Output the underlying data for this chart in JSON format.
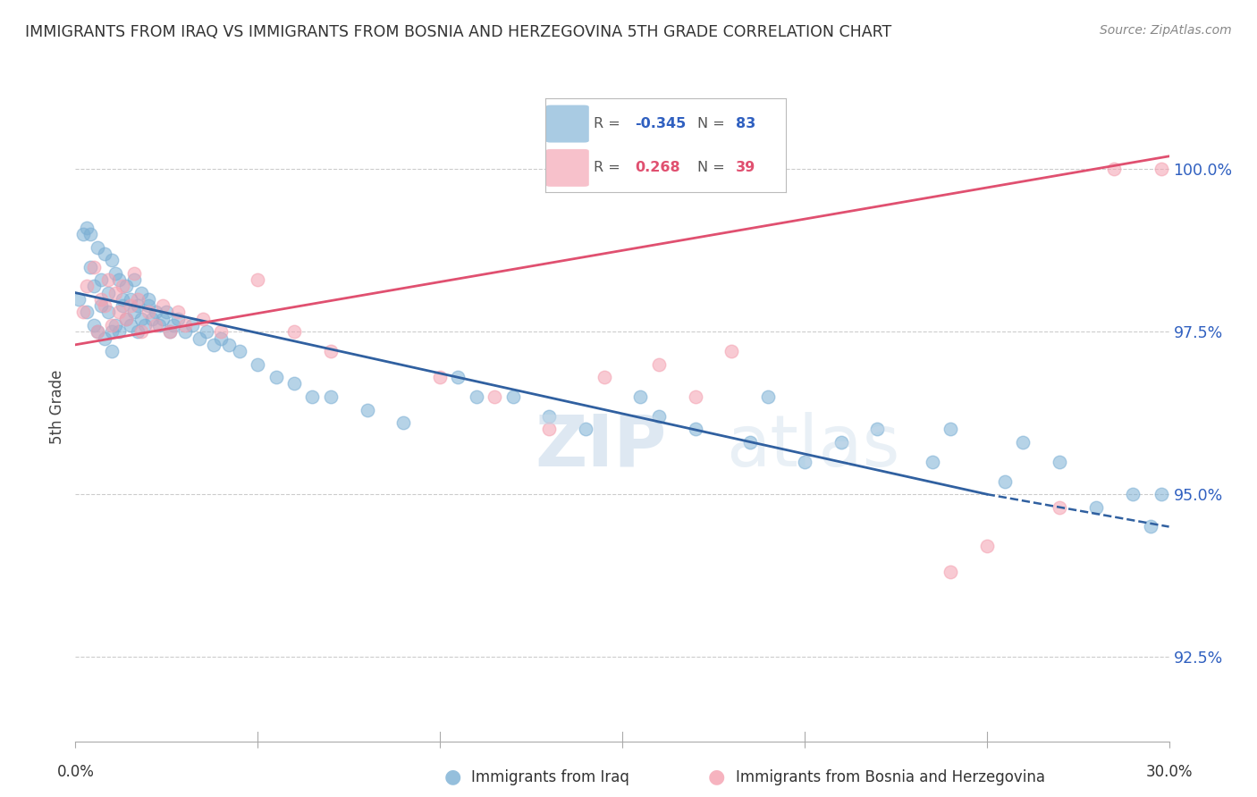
{
  "title": "IMMIGRANTS FROM IRAQ VS IMMIGRANTS FROM BOSNIA AND HERZEGOVINA 5TH GRADE CORRELATION CHART",
  "source": "Source: ZipAtlas.com",
  "ylabel": "5th Grade",
  "y_ticks": [
    92.5,
    95.0,
    97.5,
    100.0
  ],
  "y_tick_labels": [
    "92.5%",
    "95.0%",
    "97.5%",
    "100.0%"
  ],
  "xlim": [
    0.0,
    30.0
  ],
  "ylim": [
    91.2,
    101.5
  ],
  "legend_r_iraq": "-0.345",
  "legend_n_iraq": "83",
  "legend_r_bosnia": "0.268",
  "legend_n_bosnia": "39",
  "iraq_color": "#7bafd4",
  "bosnia_color": "#f4a0b0",
  "iraq_line_color": "#3060a0",
  "bosnia_line_color": "#e05070",
  "watermark_zip": "ZIP",
  "watermark_atlas": "atlas",
  "iraq_x": [
    0.1,
    0.2,
    0.3,
    0.3,
    0.4,
    0.4,
    0.5,
    0.5,
    0.6,
    0.6,
    0.7,
    0.7,
    0.8,
    0.8,
    0.9,
    0.9,
    1.0,
    1.0,
    1.0,
    1.1,
    1.1,
    1.2,
    1.2,
    1.3,
    1.3,
    1.4,
    1.4,
    1.5,
    1.5,
    1.6,
    1.6,
    1.7,
    1.7,
    1.8,
    1.8,
    1.9,
    2.0,
    2.0,
    2.1,
    2.2,
    2.3,
    2.4,
    2.5,
    2.6,
    2.7,
    2.8,
    3.0,
    3.2,
    3.4,
    3.6,
    3.8,
    4.0,
    4.2,
    4.5,
    5.0,
    5.5,
    6.0,
    6.5,
    7.0,
    8.0,
    9.0,
    10.5,
    11.0,
    12.0,
    13.0,
    14.0,
    15.5,
    16.0,
    17.0,
    18.5,
    19.0,
    20.0,
    21.0,
    22.0,
    23.5,
    24.0,
    25.5,
    26.0,
    27.0,
    28.0,
    29.0,
    29.5,
    29.8
  ],
  "iraq_y": [
    98.0,
    99.0,
    99.1,
    97.8,
    98.5,
    99.0,
    98.2,
    97.6,
    98.8,
    97.5,
    98.3,
    97.9,
    98.7,
    97.4,
    98.1,
    97.8,
    98.6,
    97.5,
    97.2,
    98.4,
    97.6,
    98.3,
    97.5,
    97.9,
    98.0,
    97.7,
    98.2,
    97.6,
    98.0,
    97.8,
    98.3,
    97.5,
    97.9,
    97.7,
    98.1,
    97.6,
    97.9,
    98.0,
    97.7,
    97.8,
    97.6,
    97.7,
    97.8,
    97.5,
    97.6,
    97.7,
    97.5,
    97.6,
    97.4,
    97.5,
    97.3,
    97.4,
    97.3,
    97.2,
    97.0,
    96.8,
    96.7,
    96.5,
    96.5,
    96.3,
    96.1,
    96.8,
    96.5,
    96.5,
    96.2,
    96.0,
    96.5,
    96.2,
    96.0,
    95.8,
    96.5,
    95.5,
    95.8,
    96.0,
    95.5,
    96.0,
    95.2,
    95.8,
    95.5,
    94.8,
    95.0,
    94.5,
    95.0
  ],
  "bosnia_x": [
    0.2,
    0.3,
    0.5,
    0.6,
    0.7,
    0.8,
    0.9,
    1.0,
    1.1,
    1.2,
    1.3,
    1.4,
    1.5,
    1.6,
    1.7,
    1.8,
    2.0,
    2.2,
    2.4,
    2.6,
    2.8,
    3.0,
    3.5,
    4.0,
    5.0,
    6.0,
    7.0,
    10.0,
    11.5,
    13.0,
    14.5,
    16.0,
    17.0,
    18.0,
    24.0,
    25.0,
    27.0,
    28.5,
    29.8
  ],
  "bosnia_y": [
    97.8,
    98.2,
    98.5,
    97.5,
    98.0,
    97.9,
    98.3,
    97.6,
    98.1,
    97.8,
    98.2,
    97.7,
    97.9,
    98.4,
    98.0,
    97.5,
    97.8,
    97.6,
    97.9,
    97.5,
    97.8,
    97.6,
    97.7,
    97.5,
    98.3,
    97.5,
    97.2,
    96.8,
    96.5,
    96.0,
    96.8,
    97.0,
    96.5,
    97.2,
    93.8,
    94.2,
    94.8,
    100.0,
    100.0
  ],
  "iraq_line_x0": 0.0,
  "iraq_line_y0": 98.1,
  "iraq_line_x1": 25.0,
  "iraq_line_y1": 95.0,
  "iraq_dash_x0": 25.0,
  "iraq_dash_y0": 95.0,
  "iraq_dash_x1": 30.0,
  "iraq_dash_y1": 94.5,
  "bosnia_line_x0": 0.0,
  "bosnia_line_y0": 97.3,
  "bosnia_line_x1": 30.0,
  "bosnia_line_y1": 100.2
}
